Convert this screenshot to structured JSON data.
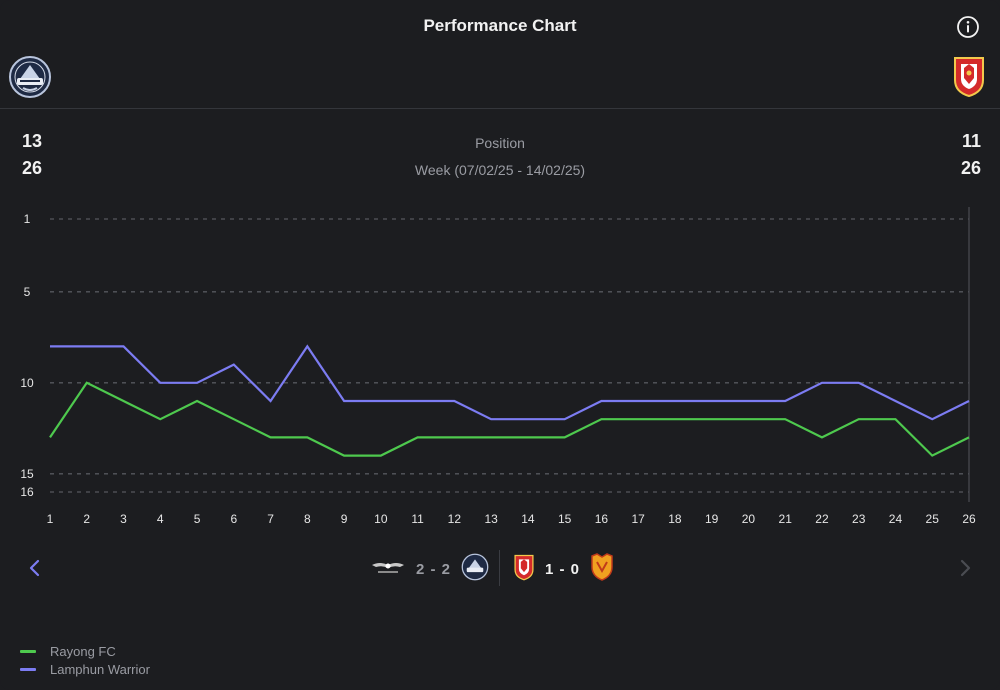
{
  "header": {
    "title": "Performance Chart"
  },
  "teams": {
    "left": {
      "name": "Rayong FC",
      "logo_icon": "rayong-fc-crest-icon",
      "position": "13",
      "total": "26",
      "color": "#4ec94e"
    },
    "right": {
      "name": "Lamphun Warrior",
      "logo_icon": "lamphun-warrior-crest-icon",
      "position": "11",
      "total": "26",
      "color": "#7c7cf2"
    }
  },
  "summary": {
    "label": "Position",
    "week": "Week (07/02/25 - 14/02/25)"
  },
  "chart_data": {
    "type": "line",
    "title": "",
    "xlabel": "",
    "ylabel": "",
    "x": [
      1,
      2,
      3,
      4,
      5,
      6,
      7,
      8,
      9,
      10,
      11,
      12,
      13,
      14,
      15,
      16,
      17,
      18,
      19,
      20,
      21,
      22,
      23,
      24,
      25,
      26
    ],
    "y_ticks": [
      1,
      5,
      10,
      15,
      16
    ],
    "ylim": [
      16,
      1
    ],
    "y_reversed": true,
    "grid": "dashed-horizontal",
    "series": [
      {
        "name": "Rayong FC",
        "color": "#4ec94e",
        "values": [
          13,
          10,
          11,
          12,
          11,
          12,
          13,
          13,
          14,
          14,
          13,
          13,
          13,
          13,
          13,
          12,
          12,
          12,
          12,
          12,
          12,
          13,
          12,
          12,
          14,
          13
        ]
      },
      {
        "name": "Lamphun Warrior",
        "color": "#7c7cf2",
        "values": [
          8,
          8,
          8,
          10,
          10,
          9,
          11,
          8,
          11,
          11,
          11,
          11,
          12,
          12,
          12,
          11,
          11,
          11,
          11,
          11,
          11,
          10,
          10,
          11,
          12,
          11
        ]
      }
    ],
    "legend": "bottom-left"
  },
  "matches": [
    {
      "home_icon": "wing-emblem-crest-icon",
      "score": "2 - 2",
      "away_icon": "rayong-fc-crest-icon",
      "highlight": false
    },
    {
      "home_icon": "lamphun-warrior-crest-icon",
      "score": "1 - 0",
      "away_icon": "orange-shield-crest-icon",
      "highlight": true
    }
  ],
  "nav": {
    "prev_icon": "chevron-left-icon",
    "next_icon": "chevron-right-icon",
    "info_icon": "info-icon"
  },
  "colors": {
    "background": "#1c1d20",
    "grid": "#55575d",
    "axis_text": "#e6e6e6",
    "muted": "#9a9ca3"
  }
}
